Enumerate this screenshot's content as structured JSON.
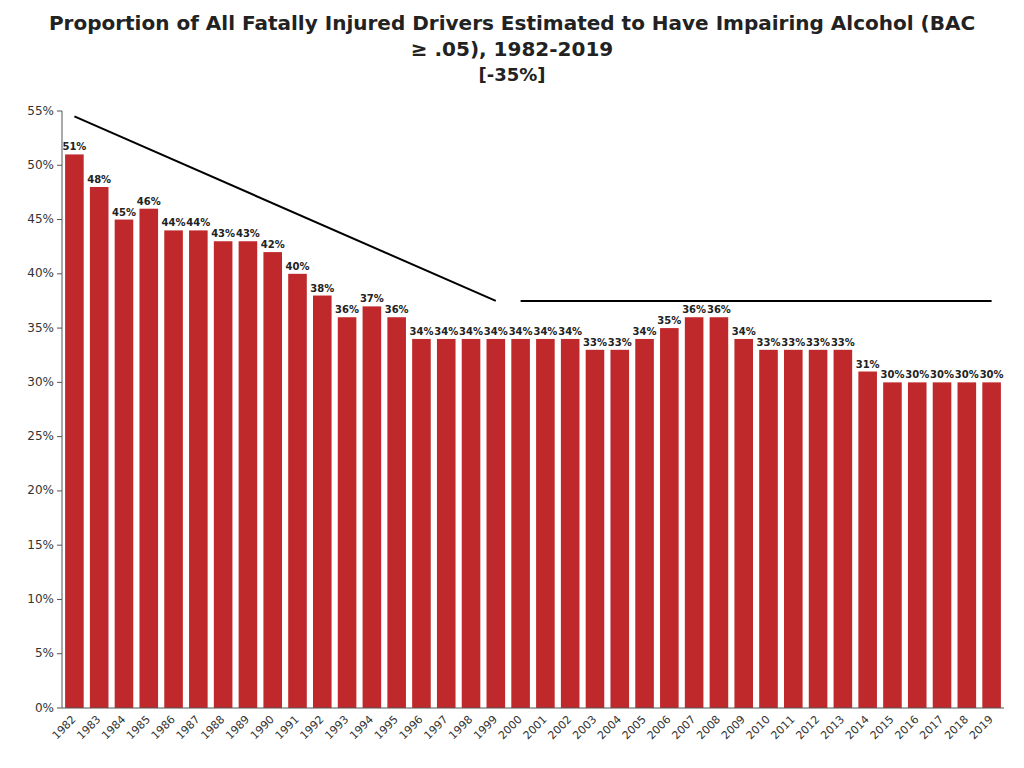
{
  "chart_data": {
    "type": "bar",
    "title": "Proportion of All Fatally Injured Drivers Estimated to Have Impairing Alcohol (BAC ≥ .05), 1982-2019",
    "subtitle": "[-35%]",
    "categories": [
      1982,
      1983,
      1984,
      1985,
      1986,
      1987,
      1988,
      1989,
      1990,
      1991,
      1992,
      1993,
      1994,
      1995,
      1996,
      1997,
      1998,
      1999,
      2000,
      2001,
      2002,
      2003,
      2004,
      2005,
      2006,
      2007,
      2008,
      2009,
      2010,
      2011,
      2012,
      2013,
      2014,
      2015,
      2016,
      2017,
      2018,
      2019
    ],
    "series": [
      {
        "type": "bar",
        "color": "#C0292B",
        "values": [
          0.51,
          0.48,
          0.45,
          0.46,
          0.44,
          0.44,
          0.43,
          0.43,
          0.42,
          0.4,
          0.38,
          0.36,
          0.37,
          0.36,
          0.34,
          0.34,
          0.34,
          0.34,
          0.34,
          0.34,
          0.34,
          0.33,
          0.33,
          0.34,
          0.35,
          0.36,
          0.36,
          0.34,
          0.33,
          0.33,
          0.33,
          0.33,
          0.31,
          0.3,
          0.3,
          0.3,
          0.3,
          0.3
        ],
        "value_labels": [
          "51%",
          "48%",
          "45%",
          "46%",
          "44%",
          "44%",
          "43%",
          "43%",
          "42%",
          "40%",
          "38%",
          "36%",
          "37%",
          "36%",
          "34%",
          "34%",
          "34%",
          "34%",
          "34%",
          "34%",
          "34%",
          "33%",
          "33%",
          "34%",
          "35%",
          "36%",
          "36%",
          "34%",
          "33%",
          "33%",
          "33%",
          "33%",
          "31%",
          "30%",
          "30%",
          "30%",
          "30%",
          "30%"
        ]
      },
      {
        "type": "line",
        "color": "#000000",
        "x": [
          1982,
          1999
        ],
        "values": [
          0.545,
          0.375
        ]
      },
      {
        "type": "line",
        "color": "#000000",
        "x": [
          2000,
          2019
        ],
        "values": [
          0.375,
          0.375
        ]
      }
    ],
    "data_labels": true,
    "grid": false,
    "ylim": [
      0,
      0.55
    ],
    "yticks": [
      {
        "value": 0,
        "label": "0%"
      },
      {
        "value": 0.05,
        "label": "5%"
      },
      {
        "value": 0.1,
        "label": "10%"
      },
      {
        "value": 0.15,
        "label": "15%"
      },
      {
        "value": 0.2,
        "label": "20%"
      },
      {
        "value": 0.25,
        "label": "25%"
      },
      {
        "value": 0.3,
        "label": "30%"
      },
      {
        "value": 0.35,
        "label": "35%"
      },
      {
        "value": 0.4,
        "label": "40%"
      },
      {
        "value": 0.45,
        "label": "45%"
      },
      {
        "value": 0.5,
        "label": "50%"
      },
      {
        "value": 0.55,
        "label": "55%"
      }
    ]
  }
}
